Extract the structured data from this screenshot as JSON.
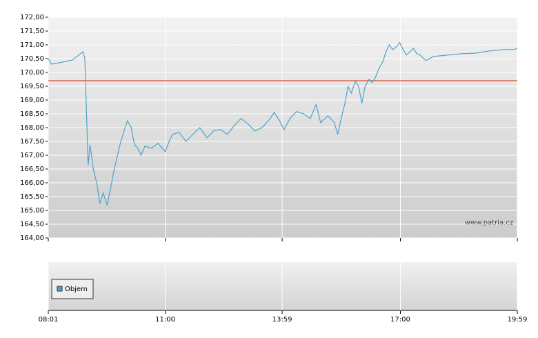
{
  "chart_data": {
    "type": "line",
    "x": [
      "08:01",
      "08:06",
      "08:22",
      "08:38",
      "08:54",
      "08:57",
      "09:02",
      "09:05",
      "09:10",
      "09:15",
      "09:20",
      "09:25",
      "09:31",
      "09:36",
      "09:41",
      "09:47",
      "09:52",
      "09:57",
      "10:02",
      "10:08",
      "10:13",
      "10:18",
      "10:23",
      "10:29",
      "10:39",
      "10:49",
      "11:00",
      "11:06",
      "11:11",
      "11:21",
      "11:32",
      "11:42",
      "11:53",
      "12:04",
      "12:14",
      "12:25",
      "12:35",
      "12:46",
      "12:56",
      "13:07",
      "13:17",
      "13:28",
      "13:38",
      "13:47",
      "13:55",
      "14:02",
      "14:11",
      "14:21",
      "14:32",
      "14:42",
      "14:51",
      "14:58",
      "15:09",
      "15:19",
      "15:24",
      "15:30",
      "15:35",
      "15:40",
      "15:45",
      "15:51",
      "15:56",
      "16:01",
      "16:06",
      "16:12",
      "16:17",
      "16:22",
      "16:27",
      "16:33",
      "16:38",
      "16:43",
      "16:48",
      "16:54",
      "16:59",
      "17:04",
      "17:09",
      "17:15",
      "17:20",
      "17:25",
      "17:30",
      "17:39",
      "17:51",
      "18:13",
      "18:34",
      "18:55",
      "19:17",
      "19:38",
      "19:54",
      "19:59"
    ],
    "series": [
      {
        "color": "#4aa3cc",
        "values": [
          170.5,
          170.3,
          170.37,
          170.45,
          170.75,
          170.5,
          166.63,
          167.38,
          166.5,
          166.0,
          165.25,
          165.63,
          165.2,
          165.75,
          166.38,
          167.0,
          167.5,
          167.88,
          168.25,
          168.0,
          167.38,
          167.25,
          167.0,
          167.33,
          167.25,
          167.43,
          167.13,
          167.5,
          167.75,
          167.83,
          167.5,
          167.75,
          168.0,
          167.63,
          167.88,
          167.93,
          167.75,
          168.08,
          168.33,
          168.13,
          167.88,
          168.0,
          168.25,
          168.55,
          168.25,
          167.93,
          168.33,
          168.58,
          168.5,
          168.33,
          168.83,
          168.18,
          168.43,
          168.18,
          167.75,
          168.38,
          168.88,
          169.5,
          169.25,
          169.68,
          169.5,
          168.88,
          169.5,
          169.75,
          169.63,
          169.83,
          170.13,
          170.38,
          170.75,
          171.0,
          170.83,
          170.93,
          171.08,
          170.83,
          170.63,
          170.75,
          170.88,
          170.68,
          170.63,
          170.43,
          170.58,
          170.63,
          170.68,
          170.7,
          170.78,
          170.83,
          170.83,
          170.88
        ]
      }
    ],
    "xlim": [
      "08:01",
      "19:59"
    ],
    "xticks": [
      "08:01",
      "11:00",
      "13:59",
      "17:00",
      "19:59"
    ],
    "ylim": [
      164,
      172
    ],
    "yticks": [
      {
        "value": 164,
        "label": "164,00"
      },
      {
        "value": 164.5,
        "label": "164,50"
      },
      {
        "value": 165,
        "label": "165,00"
      },
      {
        "value": 165.5,
        "label": "165,50"
      },
      {
        "value": 166,
        "label": "166,00"
      },
      {
        "value": 166.5,
        "label": "166,50"
      },
      {
        "value": 167,
        "label": "167,00"
      },
      {
        "value": 167.5,
        "label": "167,50"
      },
      {
        "value": 168,
        "label": "168,00"
      },
      {
        "value": 168.5,
        "label": "168,50"
      },
      {
        "value": 169,
        "label": "169,00"
      },
      {
        "value": 169.5,
        "label": "169,50"
      },
      {
        "value": 170,
        "label": "170,00"
      },
      {
        "value": 170.5,
        "label": "170,50"
      },
      {
        "value": 171,
        "label": "171,00"
      },
      {
        "value": 171.5,
        "label": "171,50"
      },
      {
        "value": 172,
        "label": "172,00"
      }
    ],
    "grid": true,
    "reference_line": {
      "value": 169.7,
      "color": "#cc2200"
    },
    "watermark": "www.patria.cz",
    "volume_panel": {
      "legend": "Objem",
      "legend_color": "#4aa3cc"
    }
  }
}
